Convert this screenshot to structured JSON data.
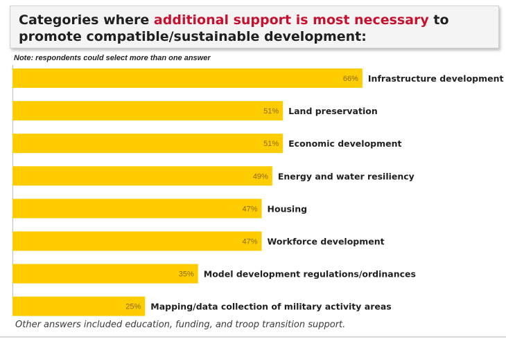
{
  "header": {
    "title_pre": "Categories where ",
    "title_highlight": "additional support is most necessary",
    "title_post": " to promote compatible/sustainable development:",
    "note": "Note: respondents could select more than one answer"
  },
  "footnote": "Other answers included education, funding, and troop transition support.",
  "colors": {
    "bar": "#ffcc00",
    "highlight": "#c8102e"
  },
  "chart_data": {
    "type": "bar",
    "orientation": "horizontal",
    "categories": [
      "Infrastructure development",
      "Land preservation",
      "Economic development",
      "Energy and water resiliency",
      "Housing",
      "Workforce development",
      "Model development regulations/ordinances",
      "Mapping/data collection of military activity areas"
    ],
    "values": [
      66,
      51,
      51,
      49,
      47,
      47,
      35,
      25
    ],
    "value_labels": [
      "66%",
      "51%",
      "51%",
      "49%",
      "47%",
      "47%",
      "35%",
      "25%"
    ],
    "unit": "%",
    "grid": false,
    "legend": "none"
  }
}
